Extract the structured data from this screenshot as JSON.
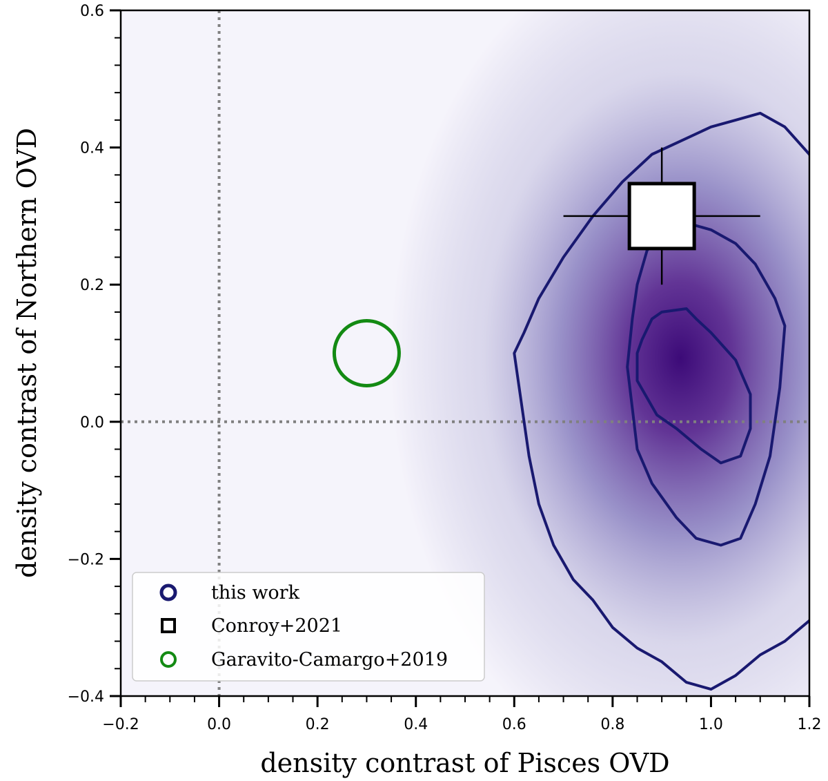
{
  "chart_data": {
    "type": "scatter",
    "title": "",
    "xlabel": "density contrast of Pisces OVD",
    "ylabel": "density contrast of Northern OVD",
    "xlim": [
      -0.2,
      1.2
    ],
    "ylim": [
      -0.4,
      0.6
    ],
    "xticks": [
      -0.2,
      0.0,
      0.2,
      0.4,
      0.6,
      0.8,
      1.0,
      1.2
    ],
    "xtick_labels": [
      "−0.2",
      "0.0",
      "0.2",
      "0.4",
      "0.6",
      "0.8",
      "1.0",
      "1.2"
    ],
    "yticks": [
      -0.4,
      -0.2,
      0.0,
      0.2,
      0.4,
      0.6
    ],
    "ytick_labels": [
      "−0.4",
      "−0.2",
      "0.0",
      "0.2",
      "0.4",
      "0.6"
    ],
    "grid": false,
    "reference_lines": {
      "x": 0.0,
      "y": 0.0,
      "style": "dotted",
      "color": "#808080"
    },
    "density": {
      "name": "this work",
      "color": "#191970",
      "peak": {
        "x": 0.93,
        "y": 0.09
      },
      "contours": [
        {
          "level": "inner",
          "points": [
            [
              0.86,
              0.12
            ],
            [
              0.88,
              0.15
            ],
            [
              0.9,
              0.16
            ],
            [
              0.95,
              0.165
            ],
            [
              0.97,
              0.15
            ],
            [
              1.0,
              0.13
            ],
            [
              1.05,
              0.09
            ],
            [
              1.08,
              0.04
            ],
            [
              1.08,
              -0.01
            ],
            [
              1.06,
              -0.05
            ],
            [
              1.02,
              -0.06
            ],
            [
              0.98,
              -0.04
            ],
            [
              0.93,
              -0.01
            ],
            [
              0.89,
              0.01
            ],
            [
              0.85,
              0.06
            ],
            [
              0.85,
              0.1
            ]
          ]
        },
        {
          "level": "middle",
          "points": [
            [
              0.87,
              0.25
            ],
            [
              0.91,
              0.28
            ],
            [
              0.95,
              0.29
            ],
            [
              1.0,
              0.28
            ],
            [
              1.05,
              0.26
            ],
            [
              1.09,
              0.23
            ],
            [
              1.13,
              0.18
            ],
            [
              1.15,
              0.14
            ],
            [
              1.14,
              0.05
            ],
            [
              1.12,
              -0.05
            ],
            [
              1.09,
              -0.12
            ],
            [
              1.06,
              -0.17
            ],
            [
              1.02,
              -0.18
            ],
            [
              0.97,
              -0.17
            ],
            [
              0.93,
              -0.14
            ],
            [
              0.88,
              -0.09
            ],
            [
              0.85,
              -0.04
            ],
            [
              0.84,
              0.02
            ],
            [
              0.83,
              0.08
            ],
            [
              0.84,
              0.15
            ],
            [
              0.85,
              0.2
            ]
          ]
        },
        {
          "level": "outer",
          "points": [
            [
              0.6,
              0.1
            ],
            [
              0.61,
              0.05
            ],
            [
              0.63,
              -0.05
            ],
            [
              0.65,
              -0.12
            ],
            [
              0.68,
              -0.18
            ],
            [
              0.72,
              -0.23
            ],
            [
              0.76,
              -0.26
            ],
            [
              0.8,
              -0.3
            ],
            [
              0.85,
              -0.33
            ],
            [
              0.9,
              -0.35
            ],
            [
              0.95,
              -0.38
            ],
            [
              1.0,
              -0.39
            ],
            [
              1.05,
              -0.37
            ],
            [
              1.1,
              -0.34
            ],
            [
              1.15,
              -0.32
            ],
            [
              1.2,
              -0.29
            ],
            [
              1.24,
              -0.24
            ],
            [
              1.27,
              -0.15
            ],
            [
              1.29,
              -0.05
            ],
            [
              1.3,
              0.05
            ],
            [
              1.29,
              0.15
            ],
            [
              1.27,
              0.25
            ],
            [
              1.24,
              0.33
            ],
            [
              1.2,
              0.39
            ],
            [
              1.15,
              0.43
            ],
            [
              1.1,
              0.45
            ],
            [
              1.05,
              0.44
            ],
            [
              1.0,
              0.43
            ],
            [
              0.94,
              0.41
            ],
            [
              0.88,
              0.39
            ],
            [
              0.82,
              0.35
            ],
            [
              0.76,
              0.3
            ],
            [
              0.7,
              0.24
            ],
            [
              0.65,
              0.18
            ],
            [
              0.62,
              0.13
            ]
          ]
        }
      ]
    },
    "points": [
      {
        "name": "Conroy+2021",
        "x": 0.9,
        "y": 0.3,
        "xerr": 0.2,
        "yerr": 0.1,
        "marker": "square",
        "face": "#ffffff",
        "edge": "#000000"
      },
      {
        "name": "Garavito-Camargo+2019",
        "x": 0.3,
        "y": 0.1,
        "marker": "circle",
        "face": "none",
        "edge": "#138a13"
      }
    ],
    "legend": {
      "position": "lower-left",
      "entries": [
        {
          "label": "this work",
          "marker": "circle",
          "color": "#191970"
        },
        {
          "label": "Conroy+2021",
          "marker": "square",
          "color": "#000000"
        },
        {
          "label": "Garavito-Camargo+2019",
          "marker": "circle",
          "color": "#138a13"
        }
      ]
    }
  }
}
